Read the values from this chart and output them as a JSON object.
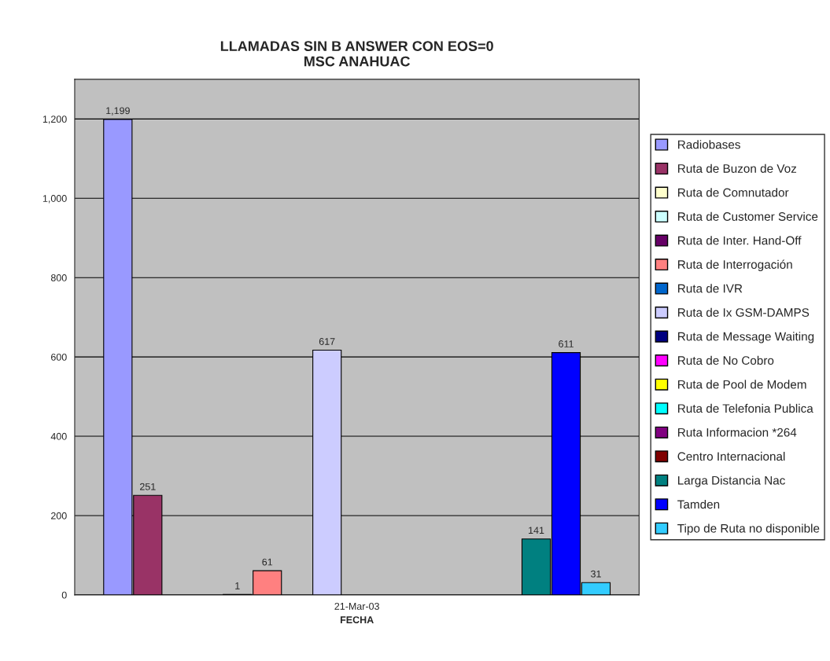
{
  "chart_data": {
    "type": "bar",
    "title": "LLAMADAS SIN B ANSWER CON EOS=0\nMSC ANAHUAC",
    "xlabel": "FECHA",
    "categories": [
      "21-Mar-03"
    ],
    "ylim": [
      0,
      1300
    ],
    "yticks": [
      0,
      200,
      400,
      600,
      800,
      {
        "value": 1000,
        "label": "1,000"
      },
      {
        "value": 1200,
        "label": "1,200"
      }
    ],
    "grid": "y",
    "legend": "right",
    "series": [
      {
        "name": "Radiobases",
        "color": "#9999ff",
        "values": [
          1199
        ],
        "value_labels": [
          "1,199"
        ]
      },
      {
        "name": "Ruta de Buzon de Voz",
        "color": "#993366",
        "values": [
          251
        ],
        "value_labels": [
          "251"
        ]
      },
      {
        "name": "Ruta de Comnutador",
        "color": "#ffffcc",
        "values": [
          null
        ]
      },
      {
        "name": "Ruta de Customer Service",
        "color": "#ccffff",
        "values": [
          null
        ]
      },
      {
        "name": "Ruta de Inter. Hand-Off",
        "color": "#660066",
        "values": [
          1
        ],
        "value_labels": [
          "1"
        ]
      },
      {
        "name": "Ruta de Interrogación",
        "color": "#ff8080",
        "values": [
          61
        ],
        "value_labels": [
          "61"
        ]
      },
      {
        "name": "Ruta de IVR",
        "color": "#0066cc",
        "values": [
          null
        ]
      },
      {
        "name": "Ruta de Ix GSM-DAMPS",
        "color": "#ccccff",
        "values": [
          617
        ],
        "value_labels": [
          "617"
        ]
      },
      {
        "name": "Ruta de Message Waiting",
        "color": "#000080",
        "values": [
          null
        ]
      },
      {
        "name": "Ruta de No Cobro",
        "color": "#ff00ff",
        "values": [
          null
        ]
      },
      {
        "name": "Ruta de Pool de Modem",
        "color": "#ffff00",
        "values": [
          null
        ]
      },
      {
        "name": "Ruta de Telefonia Publica",
        "color": "#00ffff",
        "values": [
          null
        ]
      },
      {
        "name": "Ruta Informacion *264",
        "color": "#800080",
        "values": [
          null
        ]
      },
      {
        "name": "Centro Internacional",
        "color": "#800000",
        "values": [
          null
        ]
      },
      {
        "name": "Larga Distancia Nac",
        "color": "#008080",
        "values": [
          141
        ],
        "value_labels": [
          "141"
        ]
      },
      {
        "name": "Tamden",
        "color": "#0000ff",
        "values": [
          611
        ],
        "value_labels": [
          "611"
        ]
      },
      {
        "name": "Tipo de Ruta no disponible",
        "color": "#33ccff",
        "values": [
          31
        ],
        "value_labels": [
          "31"
        ]
      }
    ]
  }
}
